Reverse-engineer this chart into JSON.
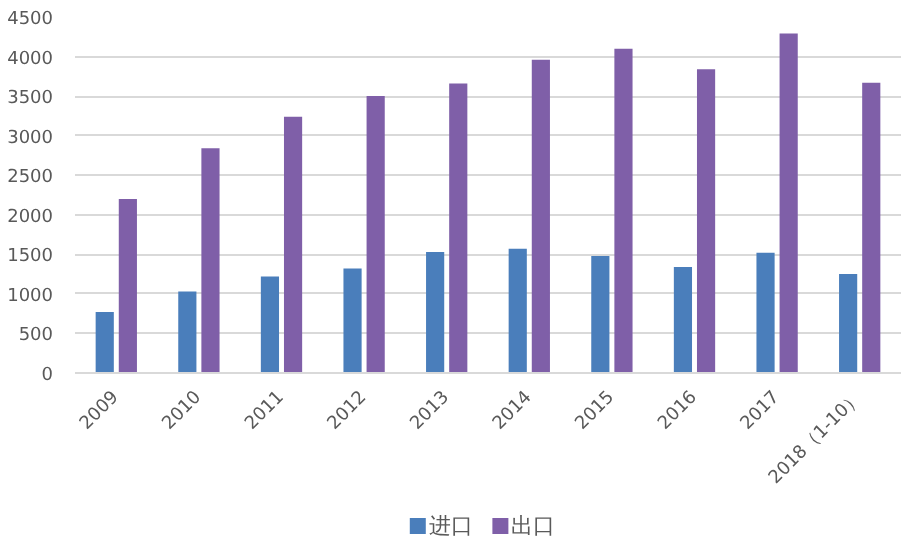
{
  "chart_data": {
    "type": "bar",
    "categories": [
      "2009",
      "2010",
      "2011",
      "2012",
      "2013",
      "2014",
      "2015",
      "2016",
      "2017",
      "2018（1-10）"
    ],
    "series": [
      {
        "name": "进口",
        "color": "#4a7ebb",
        "values": [
          770,
          1030,
          1220,
          1320,
          1530,
          1570,
          1480,
          1340,
          1520,
          1250
        ]
      },
      {
        "name": "出口",
        "color": "#7f5fa8",
        "values": [
          2200,
          2840,
          3240,
          3500,
          3660,
          3960,
          4100,
          3840,
          4290,
          3670
        ]
      }
    ],
    "ylim": [
      0,
      4500
    ],
    "yticks": [
      0,
      500,
      1000,
      1500,
      2000,
      2500,
      3000,
      3500,
      4000,
      4500
    ],
    "grid": "y",
    "legend": "bottom"
  }
}
